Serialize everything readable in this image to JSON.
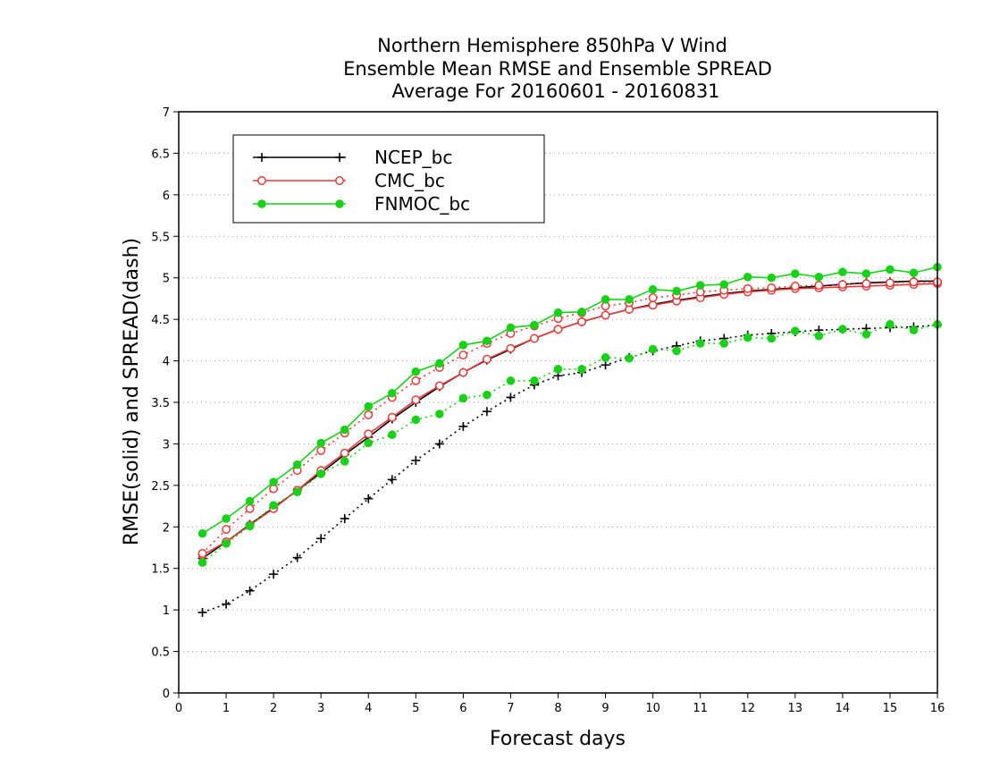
{
  "chart_data": {
    "type": "line",
    "title": [
      "Northern Hemisphere 850hPa V Wind",
      "Ensemble Mean RMSE and Ensemble SPREAD",
      "Average For 20160601 - 20160831"
    ],
    "xlabel": "Forecast days",
    "ylabel": "RMSE(solid) and SPREAD(dash)",
    "xlim": [
      0,
      16
    ],
    "ylim": [
      0,
      7
    ],
    "xticks": [
      "0",
      "1",
      "2",
      "3",
      "4",
      "5",
      "6",
      "7",
      "8",
      "9",
      "10",
      "11",
      "12",
      "13",
      "14",
      "15",
      "16"
    ],
    "yticks": [
      "0",
      "0.5",
      "1",
      "1.5",
      "2",
      "2.5",
      "3",
      "3.5",
      "4",
      "4.5",
      "5",
      "5.5",
      "6",
      "6.5",
      "7"
    ],
    "grid": true,
    "legend_position": "top-left",
    "x": [
      0.5,
      1,
      1.5,
      2,
      2.5,
      3,
      3.5,
      4,
      4.5,
      5,
      5.5,
      6,
      6.5,
      7,
      7.5,
      8,
      8.5,
      9,
      9.5,
      10,
      10.5,
      11,
      11.5,
      12,
      12.5,
      13,
      13.5,
      14,
      14.5,
      15,
      15.5,
      16
    ],
    "series": [
      {
        "name": "NCEP_bc",
        "color": "#000000",
        "marker": "plus",
        "rmse": [
          1.62,
          1.82,
          2.03,
          2.23,
          2.44,
          2.65,
          2.87,
          3.08,
          3.3,
          3.5,
          3.69,
          3.86,
          4.01,
          4.14,
          4.27,
          4.38,
          4.47,
          4.55,
          4.62,
          4.68,
          4.73,
          4.77,
          4.81,
          4.84,
          4.86,
          4.88,
          4.9,
          4.92,
          4.94,
          4.95,
          4.96,
          4.96
        ],
        "spread": [
          0.97,
          1.07,
          1.23,
          1.43,
          1.63,
          1.86,
          2.1,
          2.34,
          2.57,
          2.8,
          3.0,
          3.21,
          3.39,
          3.56,
          3.71,
          3.82,
          3.86,
          3.95,
          4.04,
          4.12,
          4.18,
          4.24,
          4.27,
          4.31,
          4.33,
          4.35,
          4.37,
          4.38,
          4.39,
          4.4,
          4.41,
          4.43
        ]
      },
      {
        "name": "CMC_bc",
        "color": "#e83a3a",
        "marker": "open-circle",
        "rmse": [
          1.66,
          1.82,
          2.02,
          2.22,
          2.44,
          2.68,
          2.89,
          3.12,
          3.32,
          3.53,
          3.7,
          3.86,
          4.02,
          4.15,
          4.27,
          4.38,
          4.47,
          4.55,
          4.62,
          4.67,
          4.72,
          4.76,
          4.8,
          4.83,
          4.85,
          4.87,
          4.88,
          4.89,
          4.9,
          4.91,
          4.92,
          4.93
        ],
        "spread": [
          1.68,
          1.97,
          2.22,
          2.46,
          2.68,
          2.92,
          3.13,
          3.35,
          3.56,
          3.76,
          3.92,
          4.07,
          4.21,
          4.33,
          4.42,
          4.51,
          4.58,
          4.66,
          4.7,
          4.76,
          4.79,
          4.83,
          4.85,
          4.87,
          4.88,
          4.9,
          4.91,
          4.92,
          4.93,
          4.94,
          4.95,
          4.95
        ]
      },
      {
        "name": "FNMOC_bc",
        "color": "#19d119",
        "marker": "filled-circle",
        "rmse": [
          1.92,
          2.1,
          2.31,
          2.54,
          2.75,
          3.01,
          3.17,
          3.45,
          3.61,
          3.87,
          3.97,
          4.19,
          4.24,
          4.4,
          4.43,
          4.58,
          4.59,
          4.74,
          4.74,
          4.86,
          4.84,
          4.91,
          4.92,
          5.01,
          5.0,
          5.05,
          5.01,
          5.07,
          5.05,
          5.1,
          5.06,
          5.13
        ],
        "spread": [
          1.57,
          1.8,
          2.01,
          2.26,
          2.42,
          2.64,
          2.79,
          3.01,
          3.11,
          3.29,
          3.36,
          3.55,
          3.59,
          3.76,
          3.76,
          3.9,
          3.9,
          4.04,
          4.03,
          4.14,
          4.12,
          4.21,
          4.21,
          4.28,
          4.27,
          4.36,
          4.3,
          4.38,
          4.32,
          4.44,
          4.37,
          4.44
        ]
      }
    ]
  }
}
